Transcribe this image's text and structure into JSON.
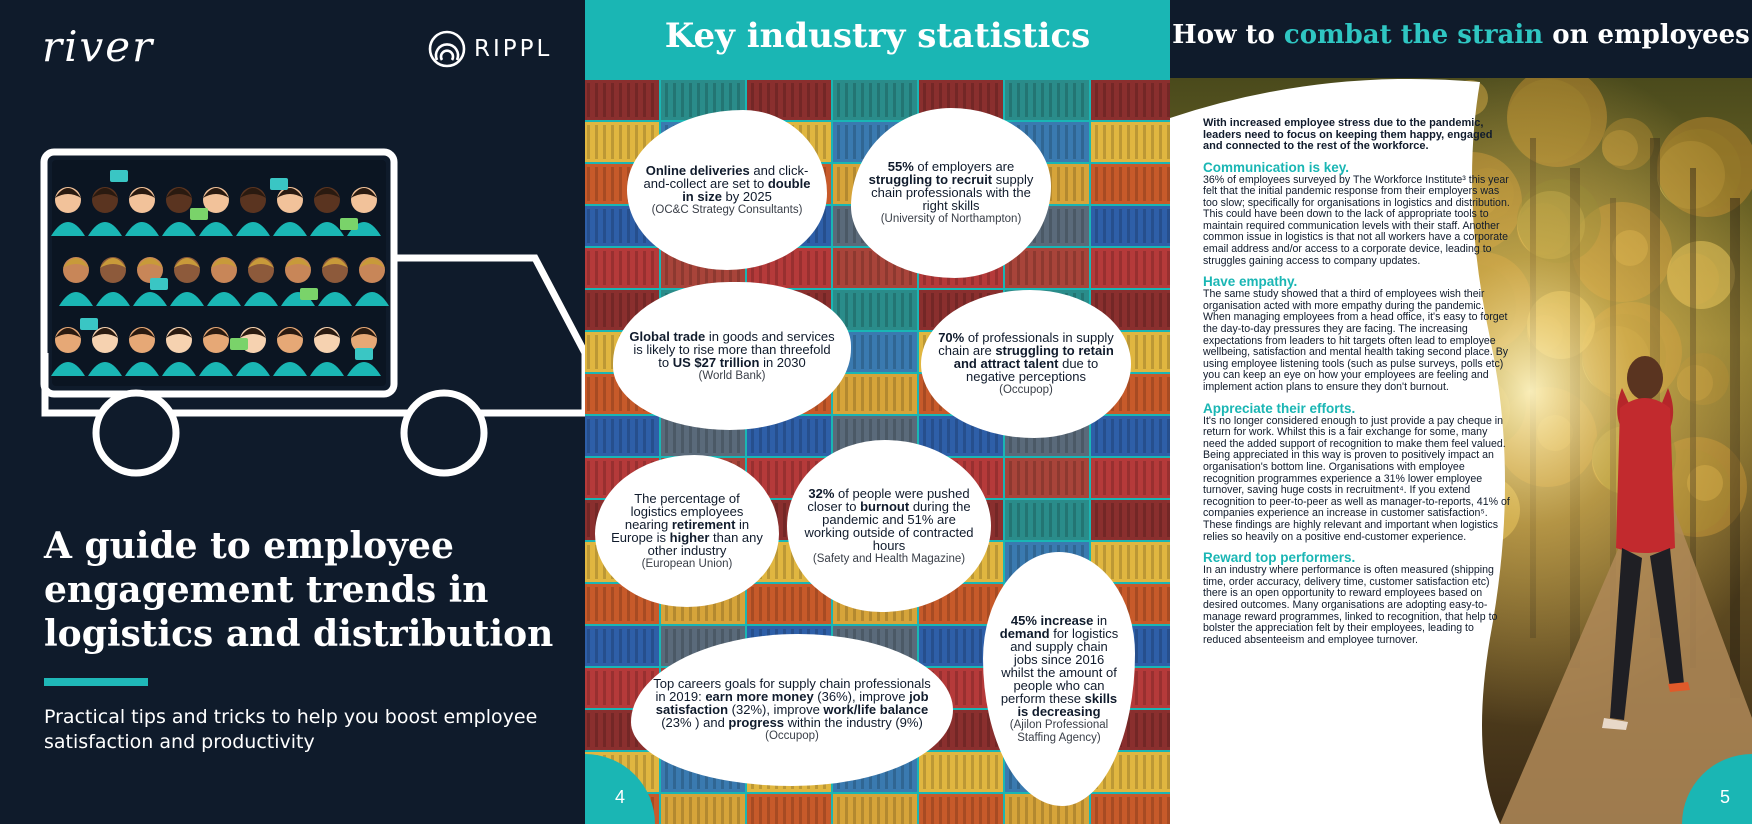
{
  "cover": {
    "logo_river": "river",
    "logo_rippl": "RIPPL",
    "title": "A guide to employee engagement trends in logistics and distribution",
    "subtitle": "Practical tips and tricks to help you boost employee satisfaction and productivity",
    "accent_color": "#1fb8b8",
    "background_color": "#0f1b2b"
  },
  "stats_page": {
    "title": "Key industry statistics",
    "page_number": "4",
    "stats": [
      {
        "parts": [
          [
            "b",
            "Online deliveries"
          ],
          [
            "t",
            " and click-and-collect are set to "
          ],
          [
            "b",
            "double in size"
          ],
          [
            "t",
            " by 2025"
          ]
        ],
        "source": "(OC&C Strategy Consultants)"
      },
      {
        "parts": [
          [
            "b",
            "55%"
          ],
          [
            "t",
            " of employers are "
          ],
          [
            "b",
            "struggling to recruit"
          ],
          [
            "t",
            " supply chain professionals with the right skills"
          ]
        ],
        "source": "(University of Northampton)"
      },
      {
        "parts": [
          [
            "b",
            "Global trade"
          ],
          [
            "t",
            " in goods and services is likely to rise more than threefold to "
          ],
          [
            "b",
            "US $27 trillion"
          ],
          [
            "t",
            " in 2030"
          ]
        ],
        "source": "(World Bank)"
      },
      {
        "parts": [
          [
            "b",
            "70%"
          ],
          [
            "t",
            " of professionals in supply chain are "
          ],
          [
            "b",
            "struggling to retain and attract talent"
          ],
          [
            "t",
            " due to negative perceptions"
          ]
        ],
        "source": "(Occupop)"
      },
      {
        "parts": [
          [
            "t",
            "The percentage of logistics employees nearing "
          ],
          [
            "b",
            "retirement"
          ],
          [
            "t",
            " in Europe is "
          ],
          [
            "b",
            "higher"
          ],
          [
            "t",
            " than any other industry"
          ]
        ],
        "source": "(European Union)"
      },
      {
        "parts": [
          [
            "b",
            "32%"
          ],
          [
            "t",
            " of people were pushed closer to "
          ],
          [
            "b",
            "burnout"
          ],
          [
            "t",
            " during the pandemic and 51% are working outside of contracted hours"
          ]
        ],
        "source": "(Safety and Health Magazine)"
      },
      {
        "parts": [
          [
            "b",
            "45% increase"
          ],
          [
            "t",
            " in "
          ],
          [
            "b",
            "demand"
          ],
          [
            "t",
            " for logistics and supply chain jobs since 2016 whilst the amount of people who can perform these "
          ],
          [
            "b",
            "skills is decreasing"
          ]
        ],
        "source": "(Ajilon Professional Staffing Agency)"
      },
      {
        "parts": [
          [
            "t",
            "Top careers goals for supply chain professionals in 2019: "
          ],
          [
            "b",
            "earn more money"
          ],
          [
            "t",
            " (36%), improve "
          ],
          [
            "b",
            "job satisfaction"
          ],
          [
            "t",
            " (32%), improve "
          ],
          [
            "b",
            "work/life balance"
          ],
          [
            "t",
            " (23% ) and "
          ],
          [
            "b",
            "progress"
          ],
          [
            "t",
            " within the industry (9%)"
          ]
        ],
        "source": "(Occupop)"
      }
    ]
  },
  "article_page": {
    "title_before": "How to ",
    "title_accent": "combat the strain",
    "title_after": " on employees",
    "page_number": "5",
    "intro": "With increased employee stress due to the pandemic, leaders need to focus on keeping them happy, engaged and connected to the rest of the workforce.",
    "sections": [
      {
        "heading": "Communication is key.",
        "body": "36% of employees surveyed by The Workforce Institute³ this year felt that the initial pandemic response from their employers was too slow; specifically for organisations in logistics and distribution. This could have been down to the lack of appropriate tools to maintain required communication levels with their staff. Another common issue in logistics is that not all workers have a corporate email address and/or access to a corporate device, leading to struggles gaining access to company updates."
      },
      {
        "heading": "Have empathy.",
        "body": "The same study showed that a third of employees wish their organisation acted with more empathy during the pandemic. When managing employees from a head office, it's easy to forget the day-to-day pressures they are facing. The increasing expectations from leaders to hit targets often lead to employee wellbeing, satisfaction and mental health taking second place. By using employee listening tools (such as pulse surveys, polls etc) you can keep an eye on how your employees are feeling and implement action plans to ensure they don't burnout."
      },
      {
        "heading": "Appreciate their efforts.",
        "body": "It's no longer considered enough to just provide a pay cheque in return for work. Whilst this is a fair exchange for some, many need the added support of recognition to make them feel valued. Being appreciated in this way is proven to positively impact an organisation's bottom line. Organisations with employee recognition programmes experience a 31% lower employee turnover, saving huge costs in recruitment⁴. If you extend recognition to peer-to-peer as well as manager-to-reports,  41% of companies experience an increase in customer satisfaction⁵. These findings are highly relevant and important when logistics relies so heavily on a positive end-customer experience."
      },
      {
        "heading": "Reward top performers.",
        "body": "In an industry where performance is often measured (shipping time, order accuracy, delivery time, customer satisfaction etc) there is an open opportunity to reward employees based on desired outcomes. Many organisations are adopting easy-to-manage reward programmes, linked to recognition, that help to bolster the appreciation felt by their employees, leading to reduced absenteeism and employee turnover."
      }
    ],
    "accent_color": "#1ab6b4"
  }
}
